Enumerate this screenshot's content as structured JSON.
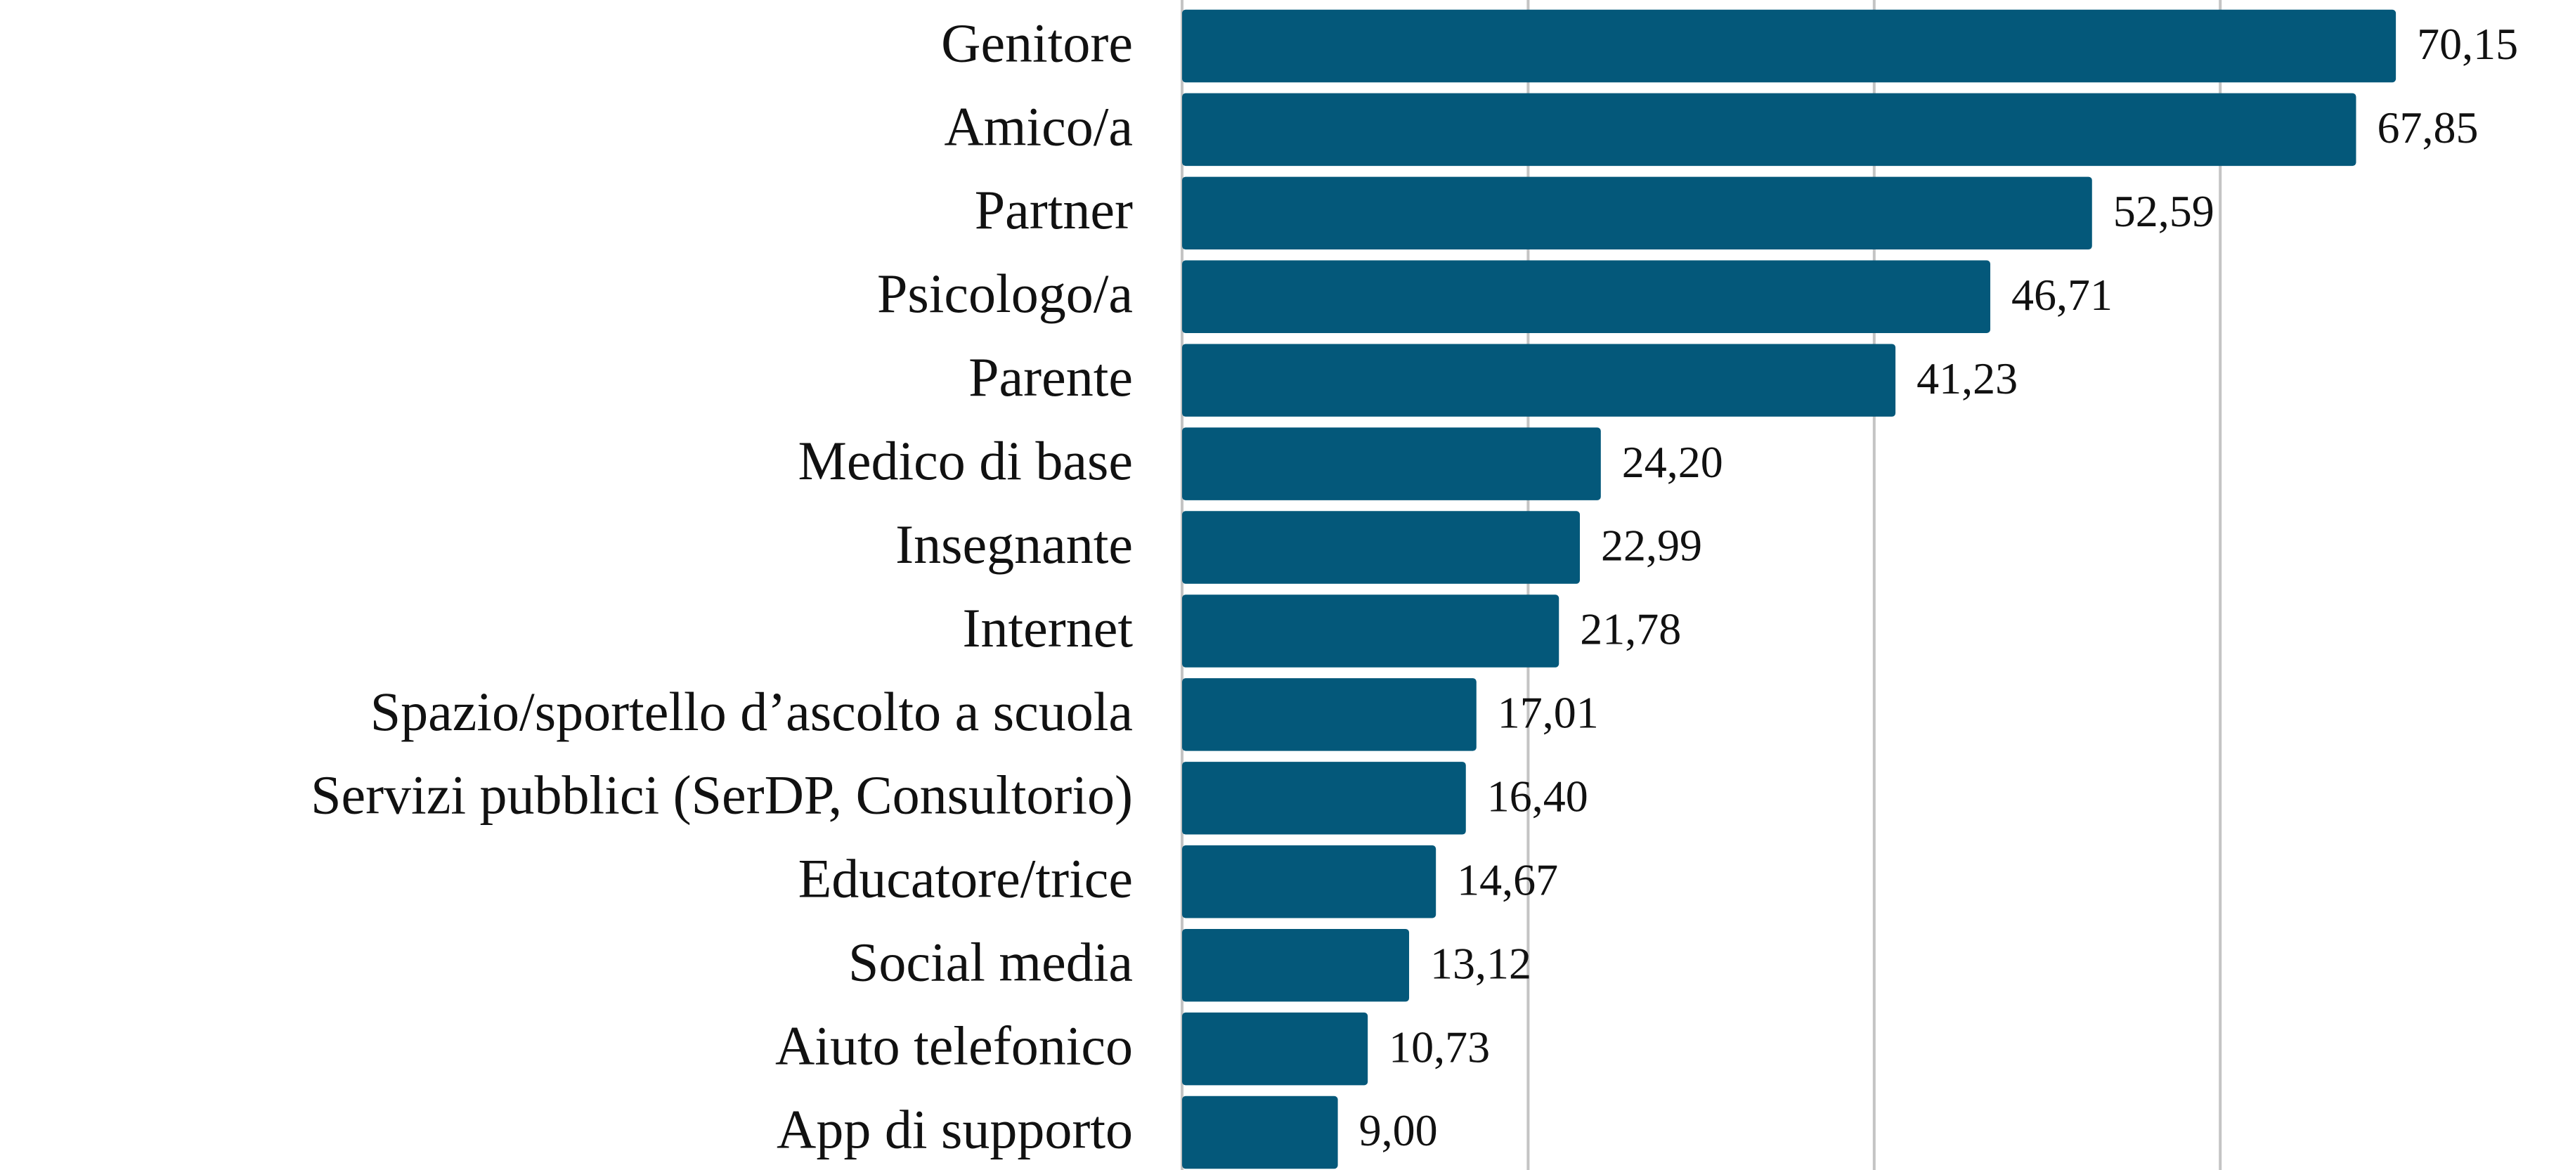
{
  "chart_data": {
    "type": "hbar",
    "categories": [
      "Genitore",
      "Amico/a",
      "Partner",
      "Psicologo/a",
      "Parente",
      "Medico di base",
      "Insegnante",
      "Internet",
      "Spazio/sportello d’ascolto a scuola",
      "Servizi pubblici (SerDP, Consultorio)",
      "Educatore/trice",
      "Social media",
      "Aiuto telefonico",
      "App di supporto"
    ],
    "values": [
      70.15,
      67.85,
      52.59,
      46.71,
      41.23,
      24.2,
      22.99,
      21.78,
      17.01,
      16.4,
      14.67,
      13.12,
      10.73,
      9.0
    ],
    "value_labels": [
      "70,15",
      "67,85",
      "52,59",
      "46,71",
      "41,23",
      "24,20",
      "22,99",
      "21,78",
      "17,01",
      "16,40",
      "14,67",
      "13,12",
      "10,73",
      "9,00"
    ],
    "color": "#04587a",
    "xlim": [
      0,
      79
    ],
    "xticks": [
      0,
      20,
      40,
      60
    ],
    "grid": true
  }
}
